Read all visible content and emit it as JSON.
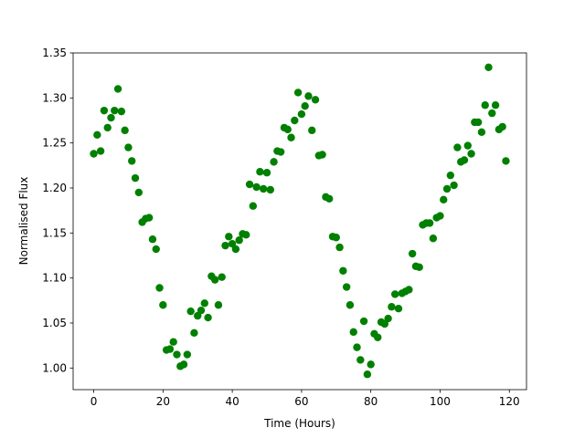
{
  "chart_data": {
    "type": "scatter",
    "xlabel": "Time (Hours)",
    "ylabel": "Normalised Flux",
    "color": "#008000",
    "x": [
      0,
      1,
      2,
      3,
      4,
      5,
      6,
      7,
      8,
      9,
      10,
      11,
      12,
      13,
      14,
      15,
      16,
      17,
      18,
      19,
      20,
      21,
      22,
      23,
      24,
      25,
      26,
      27,
      28,
      29,
      30,
      31,
      32,
      33,
      34,
      35,
      36,
      37,
      38,
      39,
      40,
      41,
      42,
      43,
      44,
      45,
      46,
      47,
      48,
      49,
      50,
      51,
      52,
      53,
      54,
      55,
      56,
      57,
      58,
      59,
      60,
      61,
      62,
      63,
      64,
      65,
      66,
      67,
      68,
      69,
      70,
      71,
      72,
      73,
      74,
      75,
      76,
      77,
      78,
      79,
      80,
      81,
      82,
      83,
      84,
      85,
      86,
      87,
      88,
      89,
      90,
      91,
      92,
      93,
      94,
      95,
      96,
      97,
      98,
      99,
      100,
      101,
      102,
      103,
      104,
      105,
      106,
      107,
      108,
      109,
      110,
      111,
      112,
      113,
      114,
      115,
      116,
      117,
      118,
      119
    ],
    "values": [
      1.238,
      1.259,
      1.241,
      1.286,
      1.267,
      1.278,
      1.286,
      1.31,
      1.285,
      1.264,
      1.245,
      1.23,
      1.211,
      1.195,
      1.162,
      1.166,
      1.167,
      1.143,
      1.132,
      1.089,
      1.07,
      1.02,
      1.021,
      1.029,
      1.015,
      1.002,
      1.004,
      1.015,
      1.063,
      1.039,
      1.058,
      1.064,
      1.072,
      1.056,
      1.102,
      1.098,
      1.07,
      1.101,
      1.136,
      1.146,
      1.138,
      1.132,
      1.142,
      1.149,
      1.148,
      1.204,
      1.18,
      1.201,
      1.218,
      1.199,
      1.217,
      1.198,
      1.229,
      1.241,
      1.24,
      1.267,
      1.265,
      1.256,
      1.275,
      1.306,
      1.282,
      1.291,
      1.302,
      1.264,
      1.298,
      1.236,
      1.237,
      1.19,
      1.188,
      1.146,
      1.145,
      1.134,
      1.108,
      1.09,
      1.07,
      1.04,
      1.023,
      1.009,
      1.052,
      0.993,
      1.004,
      1.038,
      1.034,
      1.051,
      1.049,
      1.055,
      1.068,
      1.082,
      1.066,
      1.083,
      1.085,
      1.087,
      1.127,
      1.113,
      1.112,
      1.159,
      1.161,
      1.161,
      1.144,
      1.167,
      1.169,
      1.187,
      1.199,
      1.214,
      1.203,
      1.245,
      1.229,
      1.231,
      1.247,
      1.238,
      1.273,
      1.273,
      1.262,
      1.292,
      1.334,
      1.283,
      1.292,
      1.265,
      1.268,
      1.23
    ],
    "xlim": [
      -5.95,
      124.95
    ],
    "ylim": [
      0.976,
      1.35
    ],
    "xticks": [
      0,
      20,
      40,
      60,
      80,
      100,
      120
    ],
    "yticks": [
      {
        "value": 1.0,
        "label": "1.00"
      },
      1.05,
      {
        "value": 1.1,
        "label": "1.10"
      },
      1.15,
      {
        "value": 1.2,
        "label": "1.20"
      },
      1.25,
      {
        "value": 1.3,
        "label": "1.30"
      },
      1.35
    ]
  }
}
